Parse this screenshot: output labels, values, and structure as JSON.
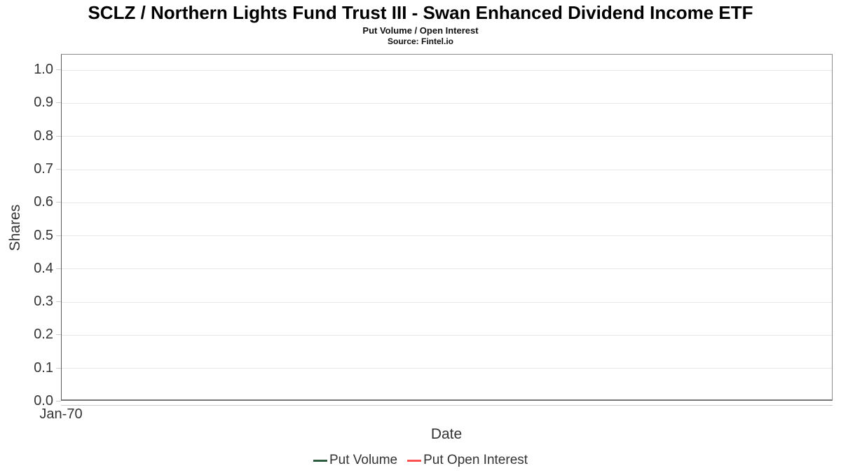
{
  "chart_data": {
    "type": "line",
    "title": "SCLZ / Northern Lights Fund Trust III - Swan Enhanced Dividend Income ETF",
    "subtitle": "Put Volume / Open Interest",
    "source_caption": "Source: Fintel.io",
    "xlabel": "Date",
    "ylabel": "Shares",
    "x_tick_labels": [
      "Jan-70"
    ],
    "y_tick_labels": [
      "0.0",
      "0.1",
      "0.2",
      "0.3",
      "0.4",
      "0.5",
      "0.6",
      "0.7",
      "0.8",
      "0.9",
      "1.0"
    ],
    "ylim": [
      0.0,
      1.047
    ],
    "grid": "horizontal-only",
    "legend_position": "bottom-center",
    "series": [
      {
        "name": "Put Volume",
        "color": "#2d5c41",
        "x": [],
        "values": []
      },
      {
        "name": "Put Open Interest",
        "color": "#fb5151",
        "x": [],
        "values": []
      }
    ]
  },
  "colors": {
    "background": "#ffffff",
    "plot_border": "#8c8c8c",
    "left_axis_line": "#5a5a5a",
    "gridline": "#e7e7e7",
    "tick_mark": "#cccccc",
    "tick_label_text": "#333333",
    "axis_title_text": "#333333",
    "legend_text": "#333333",
    "title_text": "#000000",
    "put_volume_green": "#2d5c41",
    "put_open_interest_red": "#fb5151"
  }
}
